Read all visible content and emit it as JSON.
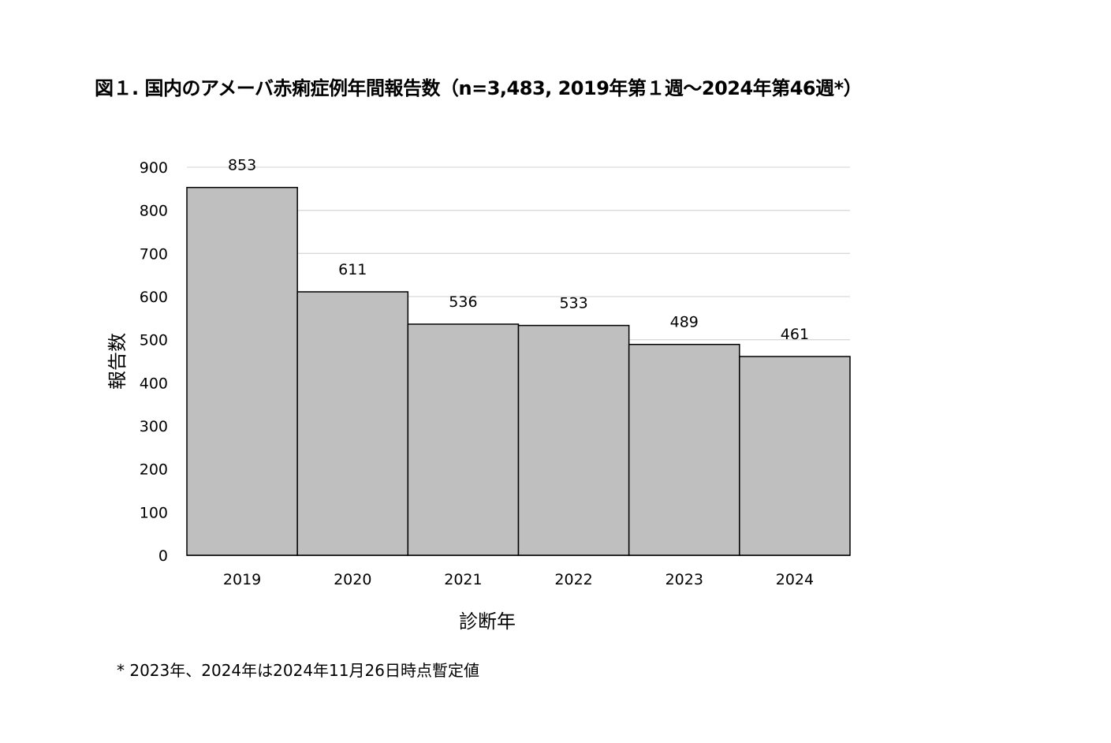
{
  "chart_data": {
    "type": "bar",
    "title": "図１. 国内のアメーバ赤痢症例年間報告数（n=3,483, 2019年第１週～2024年第46週*）",
    "xlabel": "診断年",
    "ylabel": "報告数",
    "categories": [
      "2019",
      "2020",
      "2021",
      "2022",
      "2023",
      "2024"
    ],
    "values": [
      853,
      611,
      536,
      533,
      489,
      461
    ],
    "ylim": [
      0,
      900
    ],
    "yticks": [
      0,
      100,
      200,
      300,
      400,
      500,
      600,
      700,
      800,
      900
    ],
    "grid": true,
    "bar_color": "#bfbfbf",
    "footnote": "* 2023年、2024年は2024年11月26日時点暫定値"
  }
}
